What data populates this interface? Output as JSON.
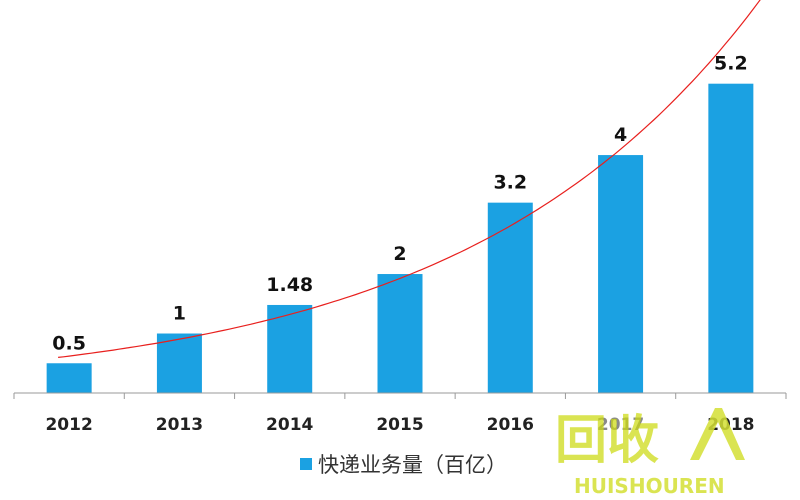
{
  "chart_data": {
    "type": "bar",
    "categories": [
      "2012",
      "2013",
      "2014",
      "2015",
      "2016",
      "2017",
      "2018"
    ],
    "series": [
      {
        "name": "快递业务量（百亿）",
        "values": [
          0.5,
          1,
          1.48,
          2,
          3.2,
          4,
          5.2
        ]
      }
    ],
    "data_labels": [
      "0.5",
      "1",
      "1.48",
      "2",
      "3.2",
      "4",
      "5.2"
    ],
    "ylim": [
      0,
      5.8
    ],
    "trendline": {
      "type": "exponential",
      "color": "#e8201e"
    },
    "legend": "bottom",
    "grid": false
  },
  "colors": {
    "bar": "#1ba1e2",
    "trend": "#e8201e",
    "axis": "#9a9a9a"
  },
  "watermark": {
    "text": "回收",
    "subtext": "HUISHOUREN",
    "color": "#d4e034"
  }
}
